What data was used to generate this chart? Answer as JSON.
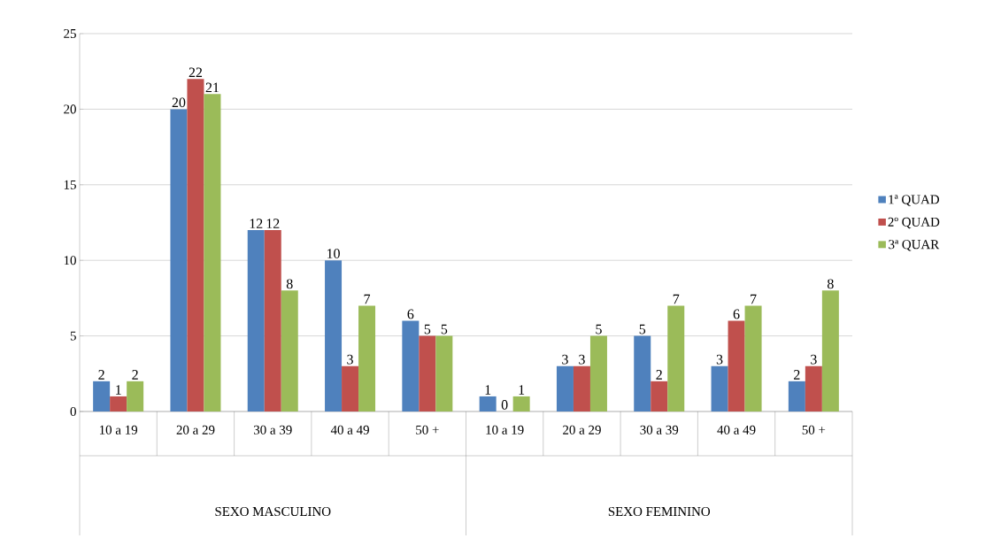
{
  "chart_data": {
    "type": "bar",
    "categories": [
      "10 a 19",
      "20 a 29",
      "30 a 39",
      "40 a 49",
      "50 +",
      "10 a 19",
      "20 a 29",
      "30 a 39",
      "40 a 49",
      "50 +"
    ],
    "annotations": [
      "SEXO MASCULINO",
      "SEXO FEMININO"
    ],
    "series": [
      {
        "name": "1ª QUAD",
        "color": "#4f81bd",
        "values": [
          2,
          20,
          12,
          10,
          6,
          1,
          3,
          5,
          3,
          2
        ]
      },
      {
        "name": "2º QUAD",
        "color": "#c0504d",
        "values": [
          1,
          22,
          12,
          3,
          5,
          0,
          3,
          2,
          6,
          3
        ]
      },
      {
        "name": "3ª QUAR",
        "color": "#9bbb59",
        "values": [
          2,
          21,
          8,
          7,
          5,
          1,
          5,
          7,
          7,
          8
        ]
      }
    ],
    "ylim": [
      0,
      25
    ],
    "yticks": [
      0,
      5,
      10,
      15,
      20,
      25
    ],
    "grid": "y",
    "legend": "right",
    "data_labels": true
  }
}
